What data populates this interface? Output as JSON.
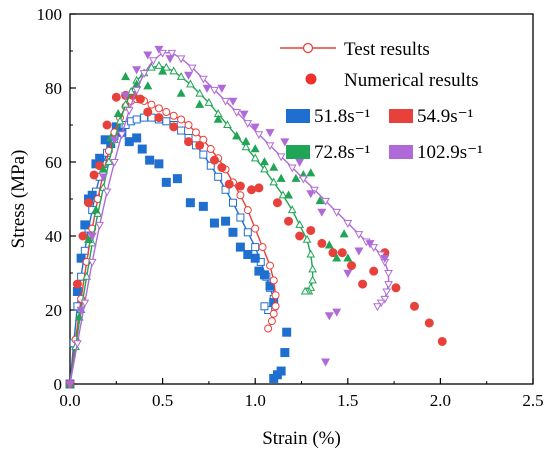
{
  "chart_data": {
    "type": "scatter",
    "xlabel": "Strain (%)",
    "ylabel": "Stress (MPa)",
    "xlim": [
      0,
      2.5
    ],
    "ylim": [
      0,
      100
    ],
    "x_ticks": [
      "0.0",
      "0.5",
      "1.0",
      "1.5",
      "2.0",
      "2.5"
    ],
    "y_ticks": [
      "0",
      "20",
      "40",
      "60",
      "80",
      "100"
    ],
    "legend": {
      "placement": "top-right",
      "test_label": "Test results",
      "numerical_label": "Numerical results",
      "test_color": "#e8403a",
      "numerical_color": "#f0302a"
    },
    "series": [
      {
        "name": "51.8s⁻¹",
        "color": "#1f6fd1",
        "marker": "square",
        "test": {
          "x": [
            0.0,
            0.02,
            0.04,
            0.06,
            0.08,
            0.1,
            0.12,
            0.14,
            0.16,
            0.18,
            0.2,
            0.22,
            0.24,
            0.26,
            0.28,
            0.3,
            0.33,
            0.36,
            0.4,
            0.44,
            0.48,
            0.52,
            0.56,
            0.6,
            0.64,
            0.68,
            0.72,
            0.76,
            0.8,
            0.84,
            0.88,
            0.92,
            0.96,
            1.0,
            1.03,
            1.06,
            1.08,
            1.1,
            1.1,
            1.09,
            1.07,
            1.05
          ],
          "y": [
            0.0,
            11,
            21,
            29,
            36,
            42,
            47,
            52,
            56,
            59.5,
            62.5,
            65,
            67,
            68.5,
            69.5,
            70,
            71,
            71.5,
            72,
            72,
            71.5,
            71,
            70,
            68.5,
            66.5,
            64.5,
            62,
            59,
            56,
            52.5,
            49,
            45,
            41,
            37,
            33,
            29,
            26,
            23,
            21,
            20,
            20,
            21
          ]
        },
        "numerical": {
          "x": [
            0.0,
            0.04,
            0.06,
            0.08,
            0.1,
            0.12,
            0.14,
            0.16,
            0.19,
            0.22,
            0.25,
            0.28,
            0.32,
            0.36,
            0.39,
            0.43,
            0.48,
            0.52,
            0.58,
            0.65,
            0.72,
            0.78,
            0.84,
            0.88,
            0.92,
            0.96,
            1.0,
            1.02,
            1.05,
            1.08,
            1.1,
            1.1,
            1.12,
            1.14,
            1.16,
            1.17
          ],
          "y": [
            0.0,
            25,
            34,
            43,
            50,
            51,
            59.5,
            61,
            66,
            65,
            69.5,
            68,
            65.5,
            66.5,
            63.5,
            60.5,
            59.5,
            54.5,
            55.5,
            49,
            48,
            43.5,
            44,
            41,
            37,
            35,
            34,
            30.5,
            29.5,
            26.5,
            22,
            1.5,
            2.5,
            3.5,
            8.5,
            14
          ]
        }
      },
      {
        "name": "54.9s⁻¹",
        "color": "#e8403a",
        "marker": "circle",
        "test": {
          "x": [
            0.0,
            0.03,
            0.06,
            0.09,
            0.12,
            0.15,
            0.18,
            0.21,
            0.24,
            0.27,
            0.3,
            0.33,
            0.36,
            0.4,
            0.44,
            0.48,
            0.52,
            0.56,
            0.6,
            0.64,
            0.68,
            0.72,
            0.76,
            0.8,
            0.84,
            0.88,
            0.92,
            0.96,
            1.0,
            1.04,
            1.08,
            1.1,
            1.11,
            1.11,
            1.1,
            1.09,
            1.07
          ],
          "y": [
            0.0,
            12,
            23,
            33,
            42,
            50,
            57,
            63,
            68,
            72,
            75,
            76.5,
            77,
            76.5,
            75.5,
            74.5,
            73.5,
            72.5,
            71.5,
            70,
            68,
            66,
            63.5,
            61,
            58,
            54.5,
            51,
            47,
            42,
            37,
            32,
            28,
            24,
            21,
            19,
            17,
            15
          ]
        },
        "numerical": {
          "x": [
            0.0,
            0.04,
            0.07,
            0.1,
            0.13,
            0.16,
            0.2,
            0.25,
            0.3,
            0.34,
            0.38,
            0.42,
            0.48,
            0.56,
            0.64,
            0.7,
            0.78,
            0.82,
            0.86,
            0.92,
            0.98,
            1.02,
            1.12,
            1.18,
            1.24,
            1.3,
            1.36,
            1.42,
            1.47,
            1.52,
            1.58,
            1.64,
            1.7,
            1.76,
            1.86,
            1.94,
            2.01
          ],
          "y": [
            0.0,
            27,
            40,
            49,
            56.5,
            59,
            70,
            77.5,
            78,
            78,
            77,
            73.5,
            72,
            69.5,
            65.5,
            64.5,
            60.5,
            58.5,
            54,
            53.5,
            52.5,
            53,
            49,
            44,
            40,
            41.5,
            38,
            35.5,
            35.5,
            32,
            27,
            30.5,
            35.5,
            26,
            21,
            16.5,
            11.5
          ]
        }
      },
      {
        "name": "72.8s⁻¹",
        "color": "#1fa555",
        "marker": "triangle-up",
        "test": {
          "x": [
            0.0,
            0.03,
            0.06,
            0.09,
            0.12,
            0.15,
            0.18,
            0.21,
            0.24,
            0.27,
            0.3,
            0.33,
            0.36,
            0.4,
            0.44,
            0.48,
            0.52,
            0.56,
            0.6,
            0.65,
            0.7,
            0.75,
            0.8,
            0.85,
            0.9,
            0.95,
            1.0,
            1.05,
            1.1,
            1.15,
            1.2,
            1.24,
            1.28,
            1.3,
            1.31,
            1.31,
            1.3,
            1.29,
            1.28,
            1.27
          ],
          "y": [
            0.0,
            10,
            20,
            29,
            38,
            46,
            53,
            60,
            66,
            71,
            75.5,
            79,
            82,
            84,
            85.5,
            86,
            85.5,
            84.5,
            83,
            81,
            78.5,
            76,
            73,
            70,
            67,
            64,
            61,
            58,
            54.5,
            51,
            47,
            43,
            39,
            35,
            31,
            28,
            26,
            25,
            25,
            25
          ]
        },
        "numerical": {
          "x": [
            0.0,
            0.05,
            0.1,
            0.14,
            0.18,
            0.22,
            0.26,
            0.3,
            0.36,
            0.42,
            0.5,
            0.6,
            0.7,
            0.8,
            0.9,
            0.95,
            1.0,
            1.05,
            1.1,
            1.14,
            1.18,
            1.22,
            1.26,
            1.3,
            1.35,
            1.4,
            1.44,
            1.48,
            1.5
          ],
          "y": [
            0.0,
            18,
            39,
            47,
            58,
            66.5,
            73,
            83,
            81,
            80.5,
            84.5,
            78.5,
            75.5,
            71.5,
            67,
            65.5,
            63.5,
            60,
            58.5,
            55.5,
            51,
            55.5,
            56.5,
            57,
            49.5,
            37.5,
            34,
            40.5,
            34
          ]
        }
      },
      {
        "name": "102.9s⁻¹",
        "color": "#b06ad8",
        "marker": "triangle-down",
        "test": {
          "x": [
            0.0,
            0.04,
            0.08,
            0.12,
            0.16,
            0.2,
            0.24,
            0.28,
            0.32,
            0.36,
            0.4,
            0.45,
            0.5,
            0.55,
            0.6,
            0.66,
            0.72,
            0.78,
            0.84,
            0.9,
            0.96,
            1.02,
            1.08,
            1.14,
            1.2,
            1.26,
            1.32,
            1.38,
            1.44,
            1.5,
            1.56,
            1.6,
            1.64,
            1.68,
            1.7,
            1.72,
            1.72,
            1.71,
            1.7,
            1.68,
            1.66
          ],
          "y": [
            0.0,
            11,
            22,
            33,
            43,
            52,
            60,
            67.5,
            74,
            79.5,
            84,
            87.5,
            89.5,
            89.5,
            88,
            85.5,
            82.5,
            79.5,
            76.5,
            73.5,
            70.5,
            67.5,
            64.5,
            61.5,
            58.5,
            55.5,
            52.5,
            49.5,
            46.5,
            43.5,
            40.5,
            38.5,
            37,
            35,
            33,
            30,
            27,
            25,
            23,
            22,
            21
          ]
        },
        "numerical": {
          "x": [
            0.0,
            0.06,
            0.12,
            0.18,
            0.24,
            0.3,
            0.36,
            0.42,
            0.48,
            0.54,
            0.64,
            0.74,
            0.82,
            0.88,
            0.94,
            1.0,
            1.08,
            1.16,
            1.24,
            1.3,
            1.36,
            1.38,
            1.4,
            1.44,
            1.5,
            1.56,
            1.62,
            1.7
          ],
          "y": [
            0.0,
            20,
            40,
            56,
            66,
            78,
            85,
            89,
            90.5,
            88,
            83.5,
            80,
            80,
            76.5,
            73,
            69.5,
            68,
            65.5,
            60,
            51.5,
            46.5,
            6,
            18.5,
            19.5,
            30,
            36,
            38,
            34
          ]
        }
      }
    ]
  }
}
